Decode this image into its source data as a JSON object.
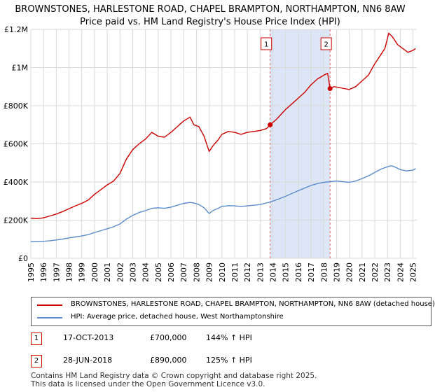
{
  "title_line1": "BROWNSTONES, HARLESTONE ROAD, CHAPEL BRAMPTON, NORTHAMPTON, NN6 8AW",
  "title_line2": "Price paid vs. HM Land Registry's House Price Index (HPI)",
  "legend": {
    "property": "BROWNSTONES, HARLESTONE ROAD, CHAPEL BRAMPTON, NORTHAMPTON, NN6 8AW (detached house)",
    "hpi": "HPI: Average price, detached house, West Northamptonshire"
  },
  "transactions": [
    {
      "num": "1",
      "date": "17-OCT-2013",
      "price": "£700,000",
      "hpi": "144% ↑ HPI"
    },
    {
      "num": "2",
      "date": "28-JUN-2018",
      "price": "£890,000",
      "hpi": "125% ↑ HPI"
    }
  ],
  "footer": {
    "line1": "Contains HM Land Registry data © Crown copyright and database right 2025.",
    "line2": "This data is licensed under the Open Government Licence v3.0."
  },
  "colors": {
    "property": "#cc0000",
    "hpi": "#5b8ccc",
    "shade": "#dde6f7",
    "grid": "#d9d9d9"
  },
  "chart_data": {
    "type": "line",
    "xlim": [
      1995,
      2025.3
    ],
    "ylim": [
      0,
      1200000
    ],
    "y_ticks": [
      0,
      200000,
      400000,
      600000,
      800000,
      1000000,
      1200000
    ],
    "y_tick_labels": [
      "£0",
      "£200K",
      "£400K",
      "£600K",
      "£800K",
      "£1M",
      "£1.2M"
    ],
    "x_ticks": [
      1995,
      1996,
      1997,
      1998,
      1999,
      2000,
      2001,
      2002,
      2003,
      2004,
      2005,
      2006,
      2007,
      2008,
      2009,
      2010,
      2011,
      2012,
      2013,
      2014,
      2015,
      2016,
      2017,
      2018,
      2019,
      2020,
      2021,
      2022,
      2023,
      2024,
      2025
    ],
    "x_tick_labels": [
      "1995",
      "1996",
      "1997",
      "1998",
      "1999",
      "2000",
      "2001",
      "2002",
      "2003",
      "2004",
      "2005",
      "2006",
      "2007",
      "2008",
      "2009",
      "2010",
      "2011",
      "2012",
      "2013",
      "2014",
      "2015",
      "2016",
      "2017",
      "2018",
      "2019",
      "2020",
      "2021",
      "2022",
      "2023",
      "2024",
      "2025"
    ],
    "shaded_region": [
      2013.79,
      2018.49
    ],
    "sale_markers": [
      {
        "label": "1",
        "x": 2013.79,
        "y": 700000
      },
      {
        "label": "2",
        "x": 2018.49,
        "y": 890000
      }
    ],
    "series": [
      {
        "name": "property",
        "x": [
          1995,
          1995.5,
          1996,
          1996.5,
          1997,
          1997.5,
          1998,
          1998.5,
          1999,
          1999.5,
          2000,
          2000.5,
          2001,
          2001.5,
          2002,
          2002.5,
          2003,
          2003.5,
          2004,
          2004.5,
          2005,
          2005.5,
          2006,
          2006.5,
          2007,
          2007.5,
          2007.8,
          2008.2,
          2008.6,
          2009,
          2009.3,
          2009.7,
          2010,
          2010.5,
          2011,
          2011.5,
          2012,
          2012.5,
          2013,
          2013.5,
          2013.79,
          2014.3,
          2015,
          2015.5,
          2016,
          2016.5,
          2017,
          2017.5,
          2018,
          2018.3,
          2018.49,
          2018.8,
          2019.2,
          2019.6,
          2020,
          2020.5,
          2021,
          2021.5,
          2022,
          2022.4,
          2022.8,
          2023.1,
          2023.4,
          2023.8,
          2024.2,
          2024.6,
          2025,
          2025.2
        ],
        "y": [
          210000,
          208000,
          212000,
          222000,
          232000,
          245000,
          260000,
          275000,
          288000,
          305000,
          335000,
          360000,
          385000,
          405000,
          445000,
          520000,
          570000,
          600000,
          625000,
          660000,
          640000,
          635000,
          660000,
          690000,
          720000,
          740000,
          700000,
          690000,
          640000,
          560000,
          590000,
          620000,
          650000,
          665000,
          660000,
          650000,
          660000,
          665000,
          670000,
          680000,
          700000,
          730000,
          780000,
          810000,
          840000,
          870000,
          910000,
          940000,
          960000,
          970000,
          890000,
          900000,
          895000,
          890000,
          885000,
          900000,
          930000,
          960000,
          1020000,
          1060000,
          1100000,
          1180000,
          1160000,
          1120000,
          1100000,
          1080000,
          1090000,
          1100000
        ]
      },
      {
        "name": "hpi",
        "x": [
          1995,
          1995.5,
          1996,
          1996.5,
          1997,
          1997.5,
          1998,
          1998.5,
          1999,
          1999.5,
          2000,
          2000.5,
          2001,
          2001.5,
          2002,
          2002.5,
          2003,
          2003.5,
          2004,
          2004.5,
          2005,
          2005.5,
          2006,
          2006.5,
          2007,
          2007.5,
          2007.8,
          2008.2,
          2008.6,
          2009,
          2009.3,
          2009.7,
          2010,
          2010.5,
          2011,
          2011.5,
          2012,
          2012.5,
          2013,
          2013.5,
          2014,
          2014.5,
          2015,
          2015.5,
          2016,
          2016.5,
          2017,
          2017.5,
          2018,
          2018.5,
          2019,
          2019.5,
          2020,
          2020.5,
          2021,
          2021.5,
          2022,
          2022.5,
          2023,
          2023.3,
          2023.6,
          2024,
          2024.5,
          2025,
          2025.2
        ],
        "y": [
          88000,
          87000,
          89000,
          92000,
          96000,
          101000,
          107000,
          112000,
          117000,
          124000,
          135000,
          145000,
          155000,
          165000,
          180000,
          205000,
          225000,
          240000,
          250000,
          262000,
          265000,
          262000,
          268000,
          278000,
          288000,
          293000,
          290000,
          282000,
          265000,
          235000,
          250000,
          262000,
          272000,
          276000,
          275000,
          272000,
          275000,
          278000,
          282000,
          290000,
          300000,
          312000,
          325000,
          340000,
          355000,
          368000,
          382000,
          392000,
          398000,
          402000,
          405000,
          402000,
          398000,
          405000,
          418000,
          432000,
          450000,
          468000,
          480000,
          485000,
          478000,
          465000,
          458000,
          462000,
          470000
        ]
      }
    ]
  }
}
